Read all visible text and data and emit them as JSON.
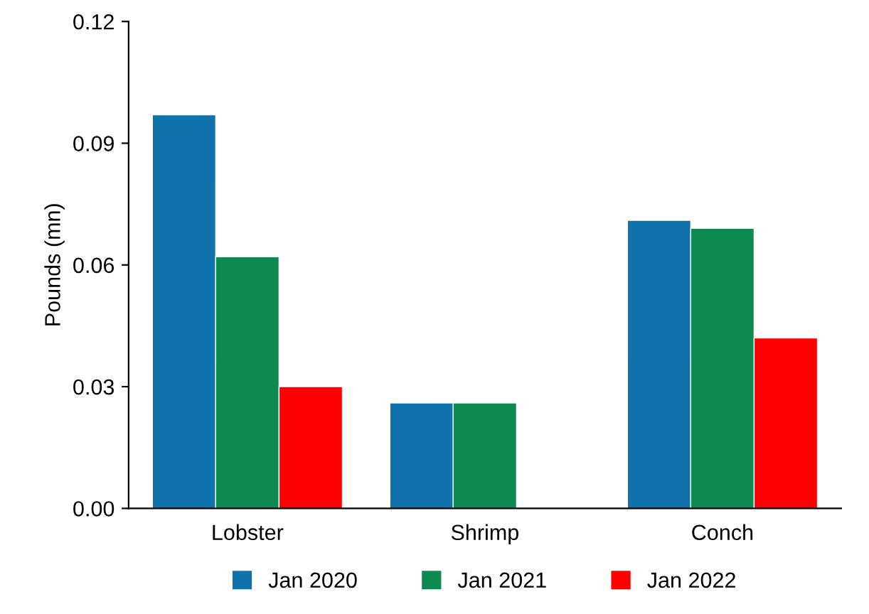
{
  "chart_data": {
    "type": "bar",
    "ylabel": "Pounds (mn)",
    "categories": [
      "Lobster",
      "Shrimp",
      "Conch"
    ],
    "series": [
      {
        "name": "Jan 2020",
        "color": "#0f72aa",
        "values": [
          0.097,
          0.026,
          0.071
        ]
      },
      {
        "name": "Jan 2021",
        "color": "#0d8a4f",
        "values": [
          0.062,
          0.026,
          0.069
        ]
      },
      {
        "name": "Jan 2022",
        "color": "#ff0000",
        "values": [
          0.03,
          null,
          0.042
        ]
      }
    ],
    "ylim": [
      0,
      0.12
    ],
    "yticks": [
      {
        "value": 0,
        "label": "0.00"
      },
      {
        "value": 0.03,
        "label": "0.03"
      },
      {
        "value": 0.06,
        "label": "0.06"
      },
      {
        "value": 0.09,
        "label": "0.09"
      },
      {
        "value": 0.12,
        "label": "0.12"
      }
    ],
    "grid": false,
    "legend": "bottom"
  }
}
